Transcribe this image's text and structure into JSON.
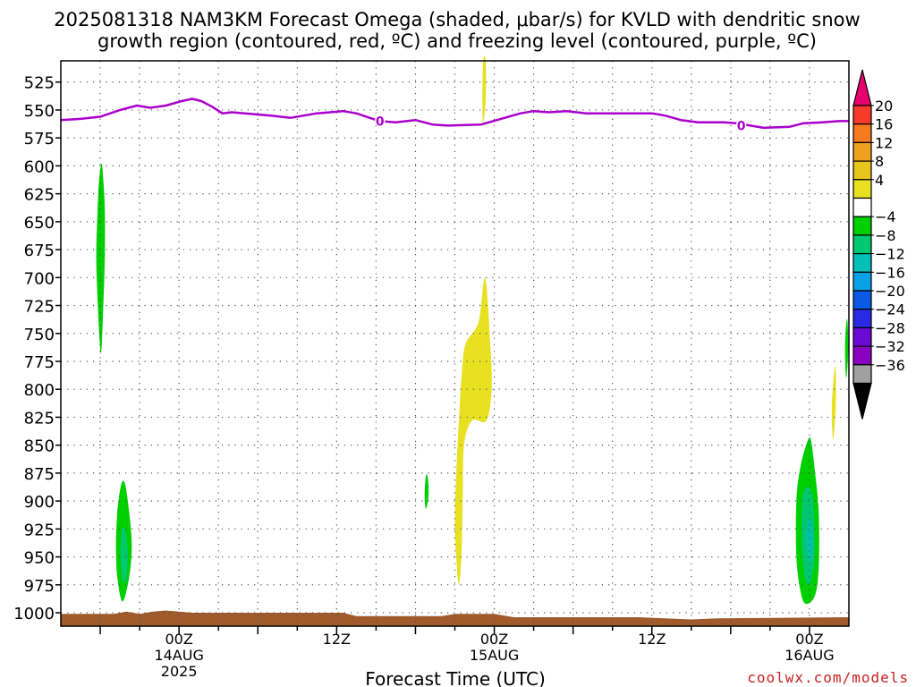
{
  "chart_data": {
    "type": "heatmap",
    "title_line1": "2025081318 NAM3KM Forecast Omega (shaded, μbar/s) for KVLD with dendritic snow",
    "title_line2": "growth region (contoured, red, ºC) and freezing level (contoured, purple, ºC)",
    "xlabel": "Forecast Time (UTC)",
    "watermark": "coolwx.com/models",
    "x_axis": {
      "unit": "hours from 2025-08-13 18Z",
      "range": [
        -3,
        57
      ],
      "ticks": [
        {
          "x": 6,
          "label": "00Z",
          "line2": "14AUG",
          "line3": "2025"
        },
        {
          "x": 18,
          "label": "12Z",
          "line2": "",
          "line3": ""
        },
        {
          "x": 30,
          "label": "00Z",
          "line2": "15AUG",
          "line3": ""
        },
        {
          "x": 42,
          "label": "12Z",
          "line2": "",
          "line3": ""
        },
        {
          "x": 54,
          "label": "00Z",
          "line2": "16AUG",
          "line3": ""
        }
      ]
    },
    "y_axis": {
      "unit": "hPa",
      "range": [
        1012,
        506
      ],
      "ticks": [
        "525",
        "550",
        "575",
        "600",
        "625",
        "650",
        "675",
        "700",
        "725",
        "750",
        "775",
        "800",
        "825",
        "850",
        "875",
        "900",
        "925",
        "950",
        "975",
        "1000"
      ]
    },
    "grid": true,
    "colorbar": {
      "labels": [
        "20",
        "16",
        "12",
        "8",
        "4",
        "−4",
        "−8",
        "−12",
        "−16",
        "−20",
        "−24",
        "−28",
        "−32",
        "−36"
      ],
      "colors": [
        "#e8006e",
        "#f73a2a",
        "#f77a1e",
        "#f0a01e",
        "#e7c41e",
        "#e7e122",
        "#ffffff",
        "#00cf00",
        "#00c86e",
        "#00c0b8",
        "#0aa0e6",
        "#0a5ae6",
        "#2a2ae6",
        "#6a0ad2",
        "#8a00c0",
        "#a0a0a0",
        "#000000"
      ]
    },
    "freezing_level": {
      "contour_label": "0",
      "color": "#aa00cc",
      "points": [
        [
          -3,
          559
        ],
        [
          -1.5,
          558
        ],
        [
          0,
          556
        ],
        [
          1.5,
          550
        ],
        [
          2.8,
          546
        ],
        [
          3.8,
          548
        ],
        [
          5,
          546
        ],
        [
          6.2,
          542
        ],
        [
          7,
          540
        ],
        [
          7.7,
          542
        ],
        [
          8.5,
          547
        ],
        [
          9.3,
          553
        ],
        [
          10,
          552
        ],
        [
          11,
          553
        ],
        [
          13,
          555
        ],
        [
          14.5,
          557
        ],
        [
          16.5,
          553
        ],
        [
          18.5,
          551
        ],
        [
          19.5,
          553
        ],
        [
          20.5,
          557
        ],
        [
          21.3,
          560
        ],
        [
          22.5,
          561
        ],
        [
          24,
          559
        ],
        [
          25.3,
          563
        ],
        [
          26.5,
          564
        ],
        [
          29,
          563
        ],
        [
          30.5,
          558
        ],
        [
          32,
          553
        ],
        [
          33,
          551
        ],
        [
          34.2,
          552
        ],
        [
          35.5,
          551
        ],
        [
          37,
          553
        ],
        [
          38.8,
          553
        ],
        [
          41.2,
          553
        ],
        [
          42,
          553
        ],
        [
          43,
          555
        ],
        [
          44.2,
          559
        ],
        [
          45.5,
          561
        ],
        [
          47.5,
          561
        ],
        [
          48.5,
          562
        ],
        [
          49.5,
          564
        ],
        [
          50.5,
          566
        ],
        [
          52.5,
          565
        ],
        [
          53.5,
          562
        ],
        [
          55,
          561
        ],
        [
          56.2,
          560
        ],
        [
          57,
          560
        ]
      ]
    },
    "omega_shading": [
      {
        "value_band": "-8 to -4",
        "color": "#00cf00",
        "points": [
          [
            0.1,
            598
          ],
          [
            -0.1,
            615
          ],
          [
            -0.2,
            640
          ],
          [
            -0.3,
            680
          ],
          [
            -0.2,
            720
          ],
          [
            0.05,
            768
          ],
          [
            0.25,
            720
          ],
          [
            0.35,
            680
          ],
          [
            0.35,
            640
          ],
          [
            0.25,
            615
          ]
        ]
      },
      {
        "value_band": "-8 to -4",
        "color": "#00cf00",
        "points": [
          [
            1.6,
            885
          ],
          [
            1.3,
            910
          ],
          [
            1.2,
            940
          ],
          [
            1.3,
            968
          ],
          [
            1.7,
            990
          ],
          [
            2.2,
            968
          ],
          [
            2.4,
            940
          ],
          [
            2.2,
            910
          ],
          [
            1.9,
            885
          ]
        ]
      },
      {
        "value_band": "-12 to -8",
        "color": "#00c86e",
        "points": [
          [
            1.65,
            925
          ],
          [
            1.55,
            945
          ],
          [
            1.65,
            968
          ],
          [
            1.95,
            972
          ],
          [
            2.1,
            950
          ],
          [
            1.95,
            928
          ]
        ]
      },
      {
        "value_band": "4 to 8",
        "color": "#e7e122",
        "points": [
          [
            29.15,
            506
          ],
          [
            29.1,
            540
          ],
          [
            29.15,
            562
          ],
          [
            29.35,
            540
          ],
          [
            29.35,
            506
          ]
        ]
      },
      {
        "value_band": "4 to 8",
        "color": "#e7e122",
        "points": [
          [
            27.8,
            760
          ],
          [
            27.5,
            790
          ],
          [
            27.3,
            830
          ],
          [
            27.1,
            875
          ],
          [
            27.0,
            920
          ],
          [
            27.1,
            950
          ],
          [
            27.3,
            975
          ],
          [
            27.5,
            950
          ],
          [
            27.6,
            900
          ],
          [
            27.7,
            850
          ],
          [
            28.3,
            828
          ],
          [
            29.4,
            828
          ],
          [
            29.8,
            800
          ],
          [
            29.7,
            760
          ],
          [
            29.3,
            700
          ],
          [
            28.8,
            740
          ]
        ]
      },
      {
        "value_band": "-8 to -4",
        "color": "#00cf00",
        "points": [
          [
            24.8,
            877
          ],
          [
            24.7,
            895
          ],
          [
            24.8,
            907
          ],
          [
            25.0,
            895
          ],
          [
            24.95,
            880
          ]
        ]
      },
      {
        "value_band": "-8 to -4",
        "color": "#00cf00",
        "points": [
          [
            53.8,
            848
          ],
          [
            53.3,
            870
          ],
          [
            53.0,
            900
          ],
          [
            53.0,
            950
          ],
          [
            53.3,
            980
          ],
          [
            53.7,
            992
          ],
          [
            54.4,
            985
          ],
          [
            54.7,
            960
          ],
          [
            54.7,
            910
          ],
          [
            54.4,
            872
          ],
          [
            54.1,
            845
          ]
        ]
      },
      {
        "value_band": "-12 to -8",
        "color": "#00c86e",
        "points": [
          [
            53.5,
            895
          ],
          [
            53.4,
            930
          ],
          [
            53.6,
            965
          ],
          [
            54.0,
            975
          ],
          [
            54.4,
            950
          ],
          [
            54.3,
            905
          ],
          [
            54.0,
            888
          ]
        ]
      },
      {
        "value_band": "-16 to -12",
        "color": "#00c0b8",
        "points": [
          [
            53.9,
            918
          ],
          [
            53.8,
            940
          ],
          [
            54.0,
            955
          ],
          [
            54.2,
            938
          ],
          [
            54.1,
            918
          ]
        ]
      },
      {
        "value_band": "-8 to -4",
        "color": "#00cf00",
        "points": [
          [
            56.8,
            740
          ],
          [
            56.7,
            765
          ],
          [
            56.8,
            790
          ],
          [
            56.95,
            765
          ],
          [
            56.9,
            740
          ]
        ]
      },
      {
        "value_band": "4 to 8",
        "color": "#e7e122",
        "points": [
          [
            55.9,
            783
          ],
          [
            55.7,
            815
          ],
          [
            55.8,
            845
          ],
          [
            56.0,
            815
          ],
          [
            56.0,
            783
          ]
        ]
      }
    ],
    "terrain": {
      "color": "#a05a2c",
      "points": [
        [
          -3,
          1001
        ],
        [
          1,
          1001
        ],
        [
          2,
          999
        ],
        [
          3,
          1001
        ],
        [
          4,
          999
        ],
        [
          5,
          998
        ],
        [
          6,
          999
        ],
        [
          7,
          1000
        ],
        [
          18.5,
          1000
        ],
        [
          19.5,
          1003
        ],
        [
          26,
          1003
        ],
        [
          27,
          1001
        ],
        [
          30,
          1001
        ],
        [
          31.5,
          1004
        ],
        [
          41,
          1004
        ],
        [
          43,
          1005
        ],
        [
          45,
          1006
        ],
        [
          47,
          1005
        ],
        [
          57,
          1004
        ]
      ]
    }
  }
}
